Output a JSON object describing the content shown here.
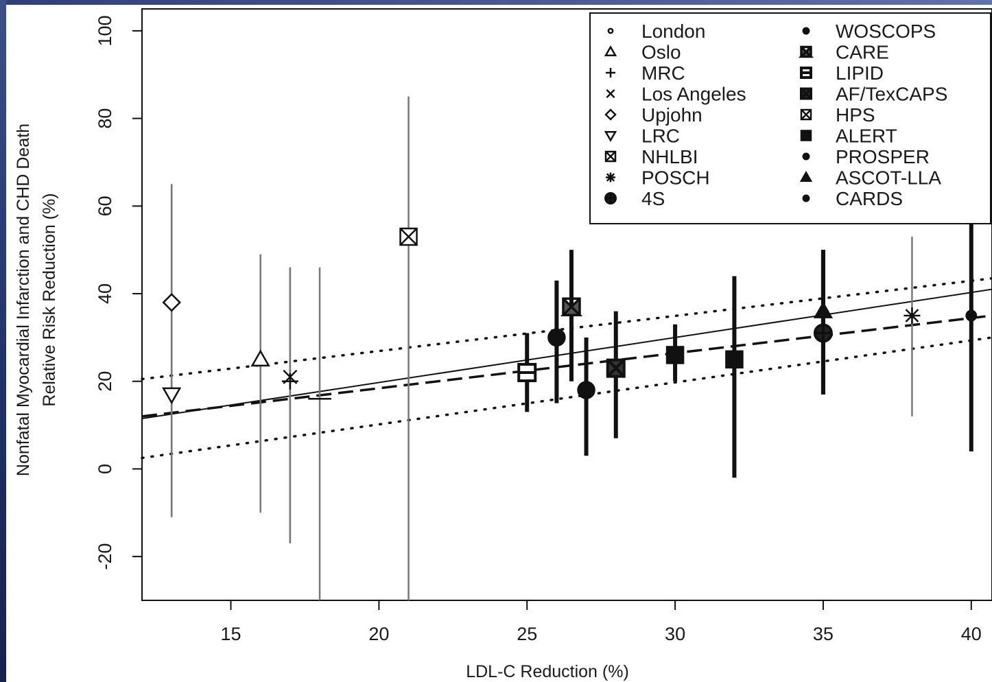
{
  "chart_data": {
    "type": "scatter",
    "xlabel": "LDL-C Reduction (%)",
    "ylabel_lines": [
      "Nonfatal Myocardial Infarction and CHD Death",
      "Relative Risk Reduction (%)"
    ],
    "xlim": [
      12,
      40.7
    ],
    "ylim": [
      -30,
      105
    ],
    "xticks": [
      15,
      20,
      25,
      30,
      35,
      40
    ],
    "yticks": [
      -20,
      0,
      20,
      40,
      60,
      80,
      100
    ],
    "legend_position": "top-right",
    "legend_columns": [
      [
        "London",
        "Oslo",
        "MRC",
        "Los Angeles",
        "Upjohn",
        "LRC",
        "NHLBI",
        "POSCH",
        "4S"
      ],
      [
        "WOSCOPS",
        "CARE",
        "LIPID",
        "AF/TexCAPS",
        "HPS",
        "ALERT",
        "PROSPER",
        "ASCOT-LLA",
        "CARDS"
      ]
    ],
    "series": [
      {
        "name": "Oslo",
        "marker": "triangle-open",
        "x": 16,
        "y": 25,
        "ci": [
          -10,
          49
        ],
        "weight": "thin"
      },
      {
        "name": "MRC",
        "marker": "plus",
        "x": 17,
        "y": 20,
        "ci": [
          -17,
          46
        ],
        "weight": "thin"
      },
      {
        "name": "Los Angeles",
        "marker": "x",
        "x": 17,
        "y": 21,
        "ci": [
          -17,
          46
        ],
        "weight": "thin"
      },
      {
        "name": "London",
        "marker": "dash",
        "x": 18,
        "y": 16,
        "ci": [
          -30,
          46
        ],
        "weight": "thin"
      },
      {
        "name": "Upjohn",
        "marker": "diamond-open",
        "x": 13,
        "y": 38,
        "ci": [
          -11,
          65
        ],
        "weight": "thin"
      },
      {
        "name": "LRC",
        "marker": "triangle-down-open",
        "x": 13,
        "y": 17,
        "ci": [
          -11,
          65
        ],
        "weight": "thin"
      },
      {
        "name": "NHLBI",
        "marker": "box-x",
        "x": 21,
        "y": 53,
        "ci": [
          -30,
          85
        ],
        "weight": "thin"
      },
      {
        "name": "WOSCOPS",
        "marker": "circle-filled",
        "x": 26,
        "y": 30,
        "ci": [
          15,
          43
        ],
        "weight": "thick"
      },
      {
        "name": "CARE",
        "marker": "hourglass-box",
        "x": 26.5,
        "y": 37,
        "ci": [
          20,
          50
        ],
        "weight": "thick"
      },
      {
        "name": "LIPID",
        "marker": "box-bar",
        "x": 25,
        "y": 22,
        "ci": [
          13,
          31
        ],
        "weight": "thick"
      },
      {
        "name": "PROSPER",
        "marker": "circle-filled",
        "x": 27,
        "y": 18,
        "ci": [
          3,
          30
        ],
        "weight": "thick"
      },
      {
        "name": "AF/TexCAPS",
        "marker": "box-x-filled",
        "x": 28,
        "y": 23,
        "ci": [
          7,
          36
        ],
        "weight": "thick"
      },
      {
        "name": "HPS",
        "marker": "box-filled",
        "x": 30,
        "y": 26,
        "ci": [
          20,
          33
        ],
        "weight": "thick"
      },
      {
        "name": "ALERT",
        "marker": "box-filled",
        "x": 32,
        "y": 25,
        "ci": [
          -2,
          44
        ],
        "weight": "thick"
      },
      {
        "name": "4S",
        "marker": "circle-plus",
        "x": 35,
        "y": 31,
        "ci": [
          17,
          50
        ],
        "weight": "thick"
      },
      {
        "name": "ASCOT-LLA",
        "marker": "triangle-filled",
        "x": 35,
        "y": 36,
        "ci": [
          17,
          50
        ],
        "weight": "thick"
      },
      {
        "name": "POSCH",
        "marker": "asterisk",
        "x": 38,
        "y": 35,
        "ci": [
          12,
          53
        ],
        "weight": "thin"
      },
      {
        "name": "CARDS",
        "marker": "circle-filled-small",
        "x": 40,
        "y": 35,
        "ci": [
          4,
          58
        ],
        "weight": "thick"
      }
    ],
    "lines": [
      {
        "style": "solid",
        "points": [
          [
            12,
            11.5
          ],
          [
            40.7,
            41
          ]
        ]
      },
      {
        "style": "dashed",
        "points": [
          [
            12,
            12
          ],
          [
            40.7,
            35
          ]
        ]
      },
      {
        "style": "dotted",
        "points": [
          [
            12,
            20.5
          ],
          [
            40.7,
            43.5
          ]
        ]
      },
      {
        "style": "dotted",
        "points": [
          [
            12,
            2.5
          ],
          [
            40.7,
            30
          ]
        ]
      }
    ]
  }
}
